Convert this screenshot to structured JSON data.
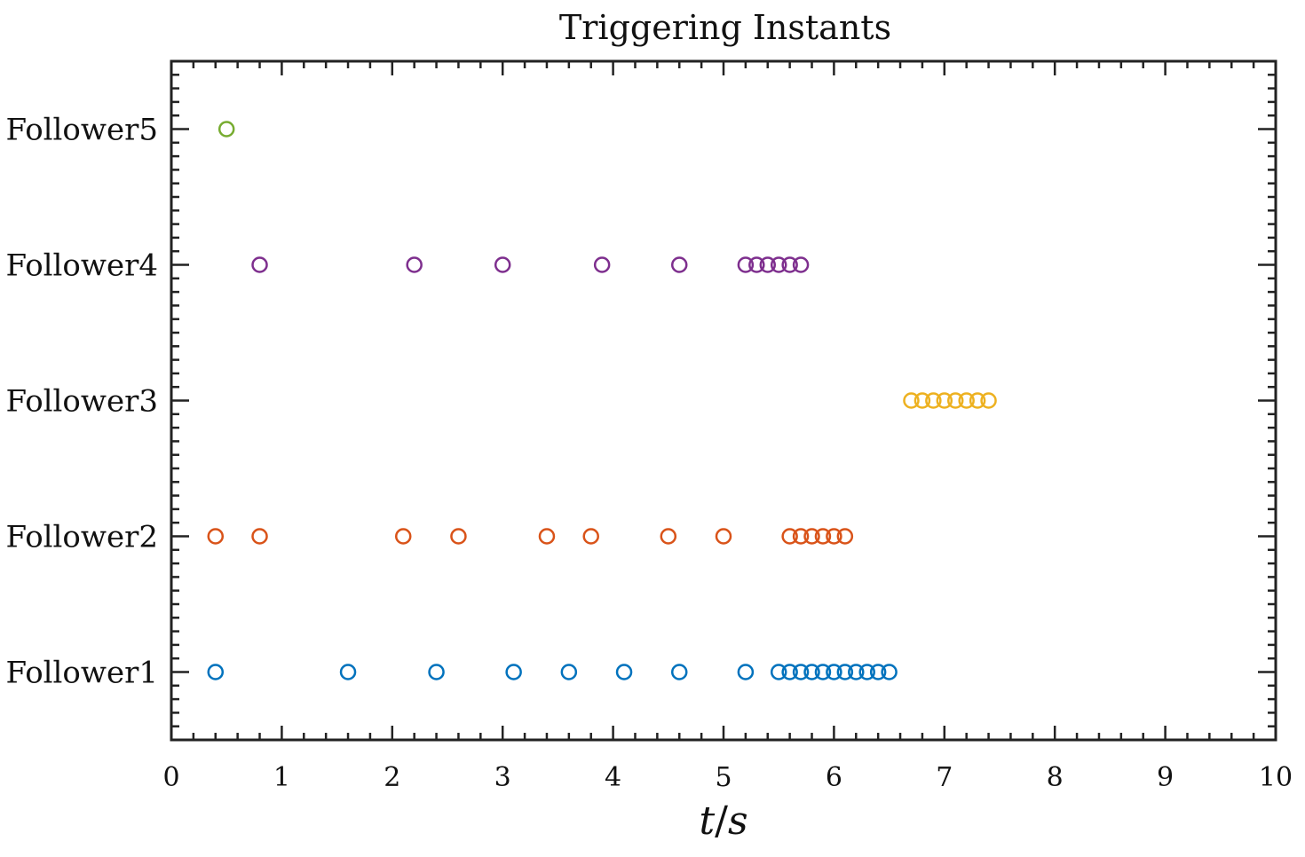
{
  "chart_data": {
    "type": "scatter",
    "title": "Triggering Instants",
    "xlabel": "t/s",
    "ylabel": "",
    "xlim": [
      0,
      10
    ],
    "xticks": [
      0,
      1,
      2,
      3,
      4,
      5,
      6,
      7,
      8,
      9,
      10
    ],
    "ylim": [
      0.5,
      5.5
    ],
    "categories": [
      "Follower1",
      "Follower2",
      "Follower3",
      "Follower4",
      "Follower5"
    ],
    "marker": "open-circle",
    "series": [
      {
        "name": "Follower1",
        "color": "#0072BD",
        "y": 1,
        "x": [
          0.4,
          1.6,
          2.4,
          3.1,
          3.6,
          4.1,
          4.6,
          5.2,
          5.5,
          5.6,
          5.7,
          5.8,
          5.9,
          6.0,
          6.1,
          6.2,
          6.3,
          6.4,
          6.5
        ]
      },
      {
        "name": "Follower2",
        "color": "#D95319",
        "y": 2,
        "x": [
          0.4,
          0.8,
          2.1,
          2.6,
          3.4,
          3.8,
          4.5,
          5.0,
          5.6,
          5.7,
          5.8,
          5.9,
          6.0,
          6.1
        ]
      },
      {
        "name": "Follower3",
        "color": "#EDB120",
        "y": 3,
        "x": [
          6.7,
          6.8,
          6.9,
          7.0,
          7.1,
          7.2,
          7.3,
          7.4
        ]
      },
      {
        "name": "Follower4",
        "color": "#7E2F8E",
        "y": 4,
        "x": [
          0.8,
          2.2,
          3.0,
          3.9,
          4.6,
          5.2,
          5.3,
          5.4,
          5.5,
          5.6,
          5.7
        ]
      },
      {
        "name": "Follower5",
        "color": "#77AC30",
        "y": 5,
        "x": [
          0.5
        ]
      }
    ],
    "grid": false,
    "legend": "none"
  }
}
